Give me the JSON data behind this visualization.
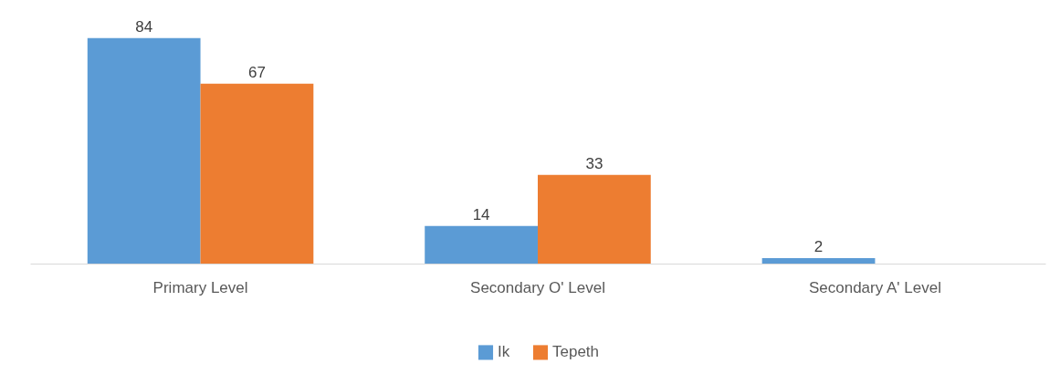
{
  "chart_data": {
    "type": "bar",
    "categories": [
      "Primary Level",
      "Secondary O' Level",
      "Secondary A' Level"
    ],
    "series": [
      {
        "name": "Ik",
        "color": "#5b9bd5",
        "values": [
          84,
          14,
          2
        ]
      },
      {
        "name": "Tepeth",
        "color": "#ed7d31",
        "values": [
          67,
          33,
          null
        ]
      }
    ],
    "data_labels": true,
    "legend": "bottom",
    "tick_labels": "x"
  }
}
